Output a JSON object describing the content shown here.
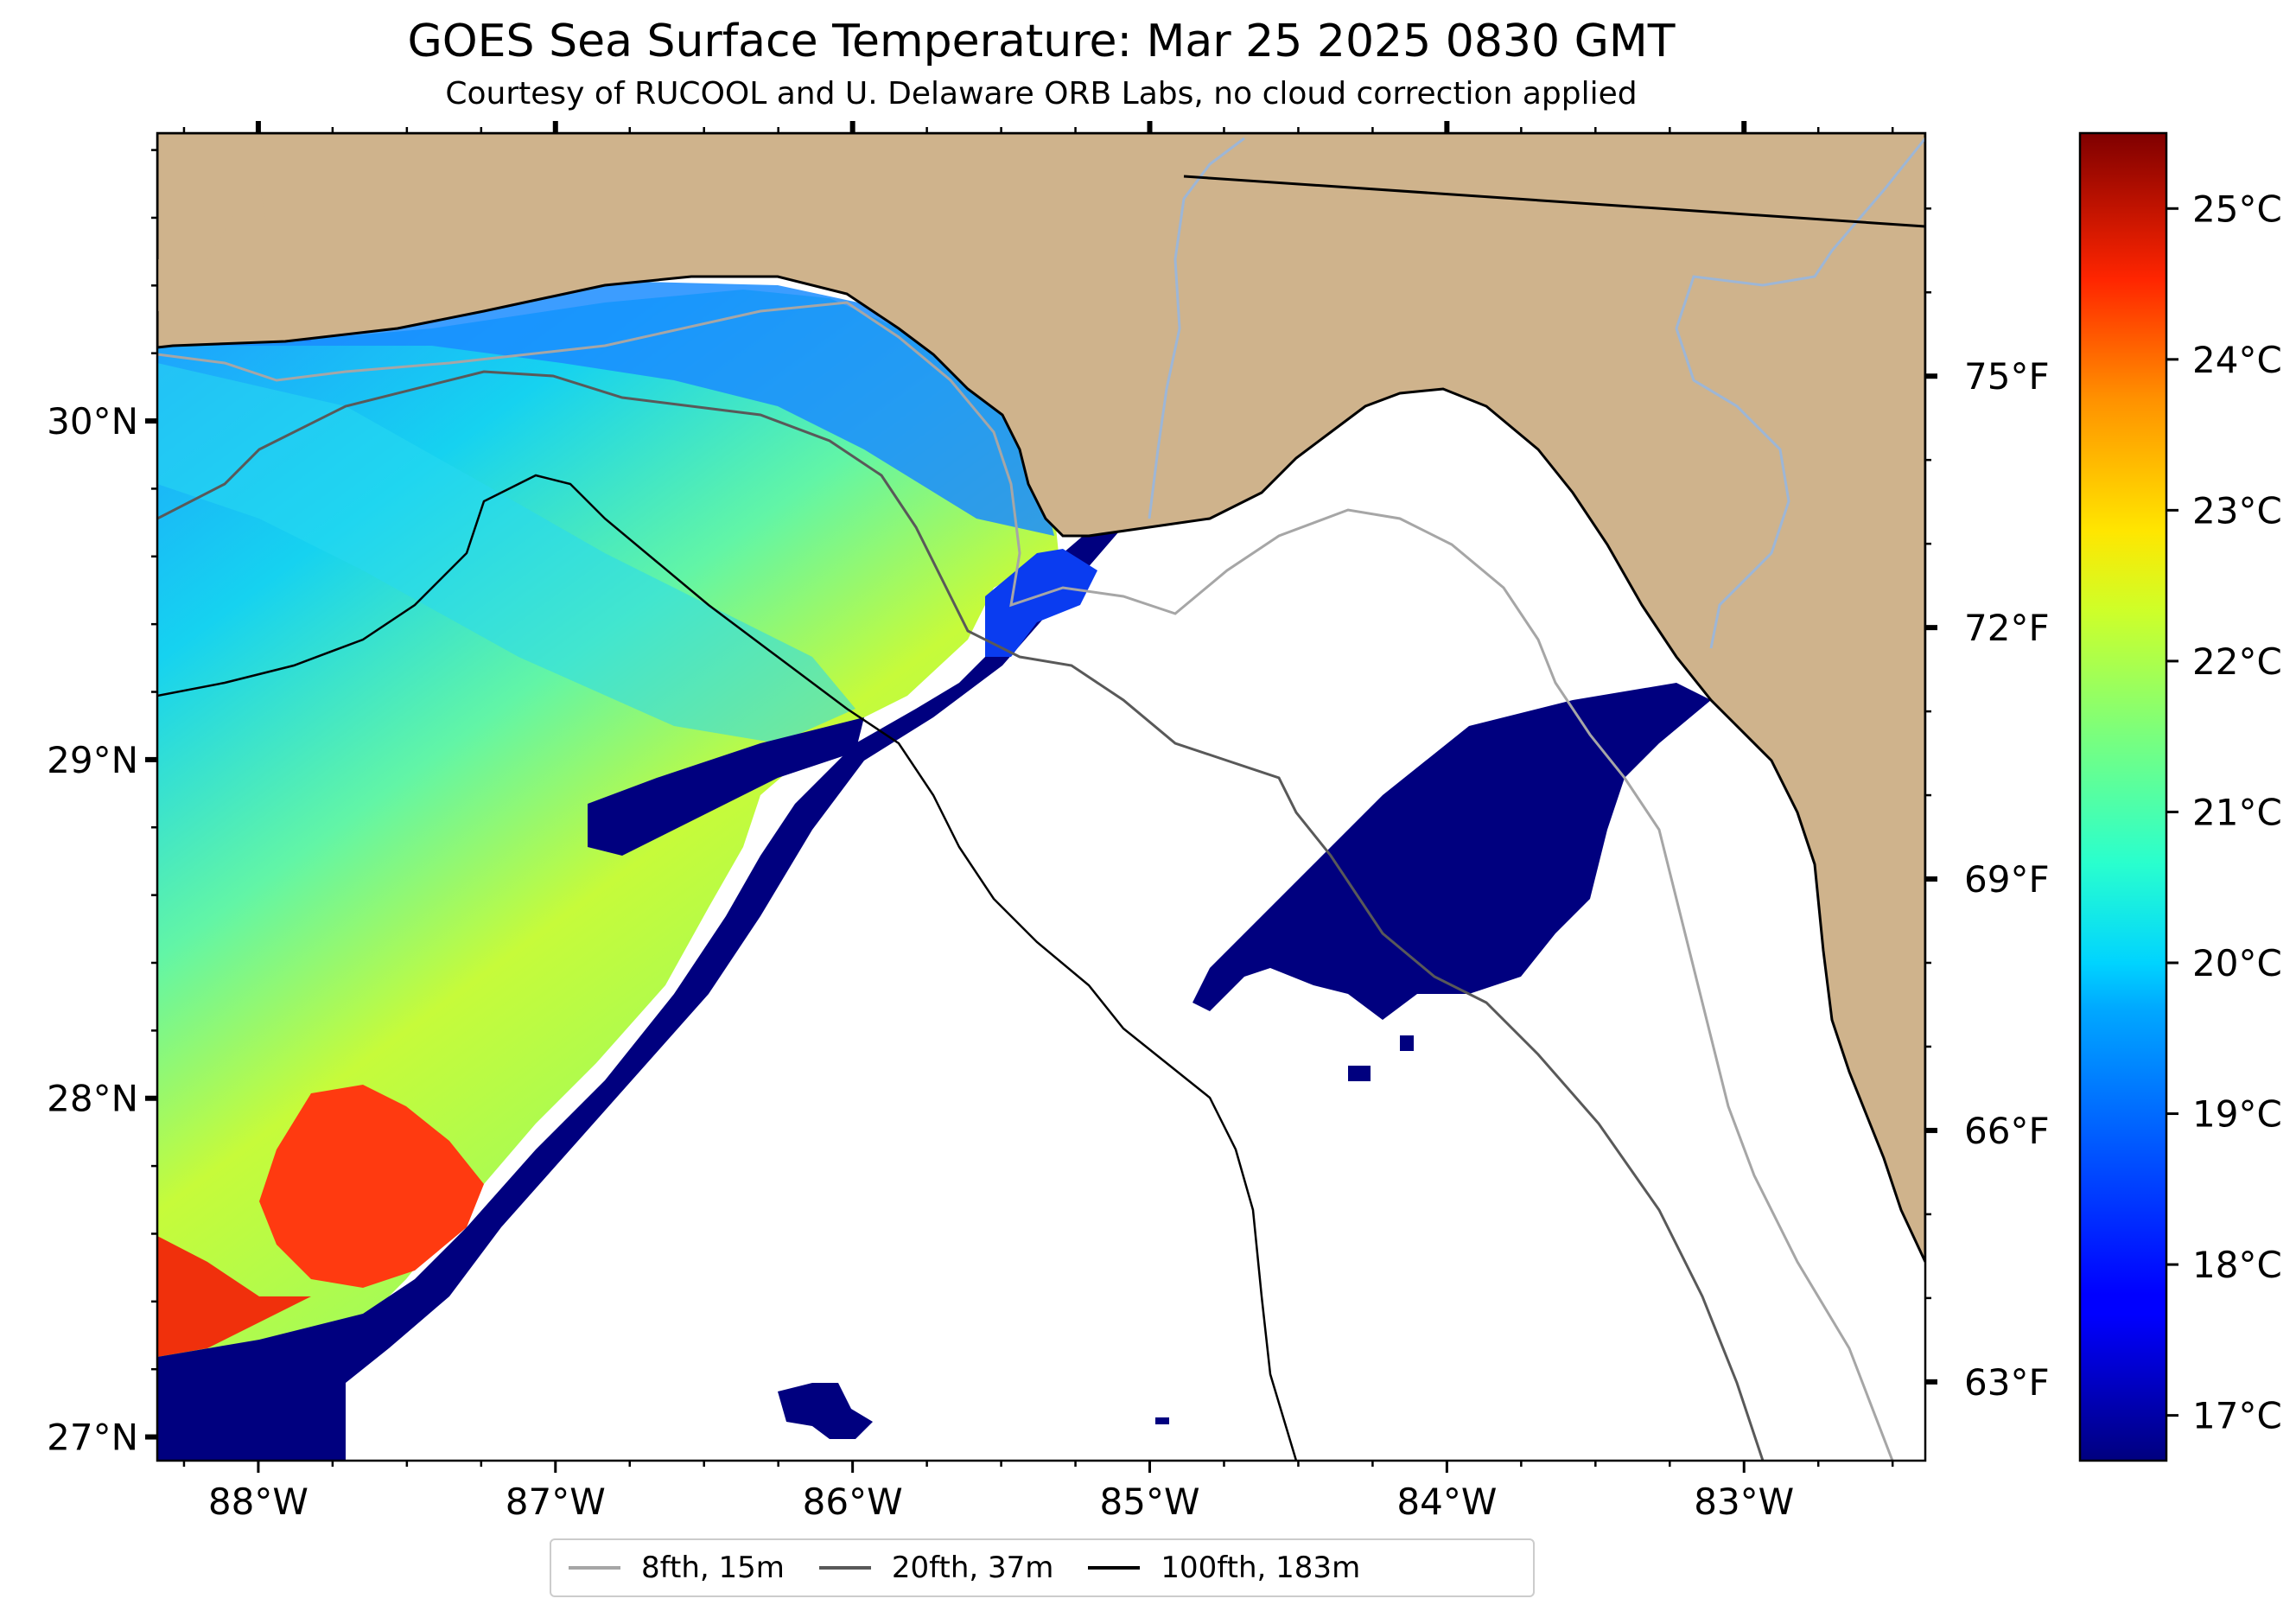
{
  "title": "GOES Sea Surface Temperature: Mar 25 2025 0830 GMT",
  "subtitle": "Courtesy of RUCOOL and U. Delaware ORB Labs, no cloud correction applied",
  "colors": {
    "land": "#cfb38c",
    "no_data": "#ffffff",
    "coastline": "#000000",
    "river": "#9db6d6",
    "isobath_8fth": "#a6a6a6",
    "isobath_20fth": "#595959",
    "isobath_100fth": "#000000"
  },
  "map": {
    "lon_range": [
      -88.34,
      -82.39
    ],
    "lat_range": [
      26.93,
      30.85
    ],
    "lon_ticks": [
      {
        "value": -88,
        "label": "88°W"
      },
      {
        "value": -87,
        "label": "87°W"
      },
      {
        "value": -86,
        "label": "86°W"
      },
      {
        "value": -85,
        "label": "85°W"
      },
      {
        "value": -84,
        "label": "84°W"
      },
      {
        "value": -83,
        "label": "83°W"
      }
    ],
    "lat_ticks": [
      {
        "value": 30,
        "label": "30°N"
      },
      {
        "value": 29,
        "label": "29°N"
      },
      {
        "value": 28,
        "label": "28°N"
      },
      {
        "value": 27,
        "label": "27°N"
      }
    ],
    "f_ticks": [
      {
        "value": 75,
        "label": "75°F"
      },
      {
        "value": 72,
        "label": "72°F"
      },
      {
        "value": 69,
        "label": "69°F"
      },
      {
        "value": 66,
        "label": "66°F"
      },
      {
        "value": 63,
        "label": "63°F"
      }
    ]
  },
  "colorbar": {
    "colormap": "jet",
    "range_c": [
      16.7,
      25.5
    ],
    "ticks": [
      {
        "value": 25,
        "label": "25°C"
      },
      {
        "value": 24,
        "label": "24°C"
      },
      {
        "value": 23,
        "label": "23°C"
      },
      {
        "value": 22,
        "label": "22°C"
      },
      {
        "value": 21,
        "label": "21°C"
      },
      {
        "value": 20,
        "label": "20°C"
      },
      {
        "value": 19,
        "label": "19°C"
      },
      {
        "value": 18,
        "label": "18°C"
      },
      {
        "value": 17,
        "label": "17°C"
      }
    ]
  },
  "legend": [
    {
      "label": "8fth, 15m",
      "color": "#a6a6a6"
    },
    {
      "label": "20fth, 37m",
      "color": "#595959"
    },
    {
      "label": "100fth, 183m",
      "color": "#000000"
    }
  ]
}
